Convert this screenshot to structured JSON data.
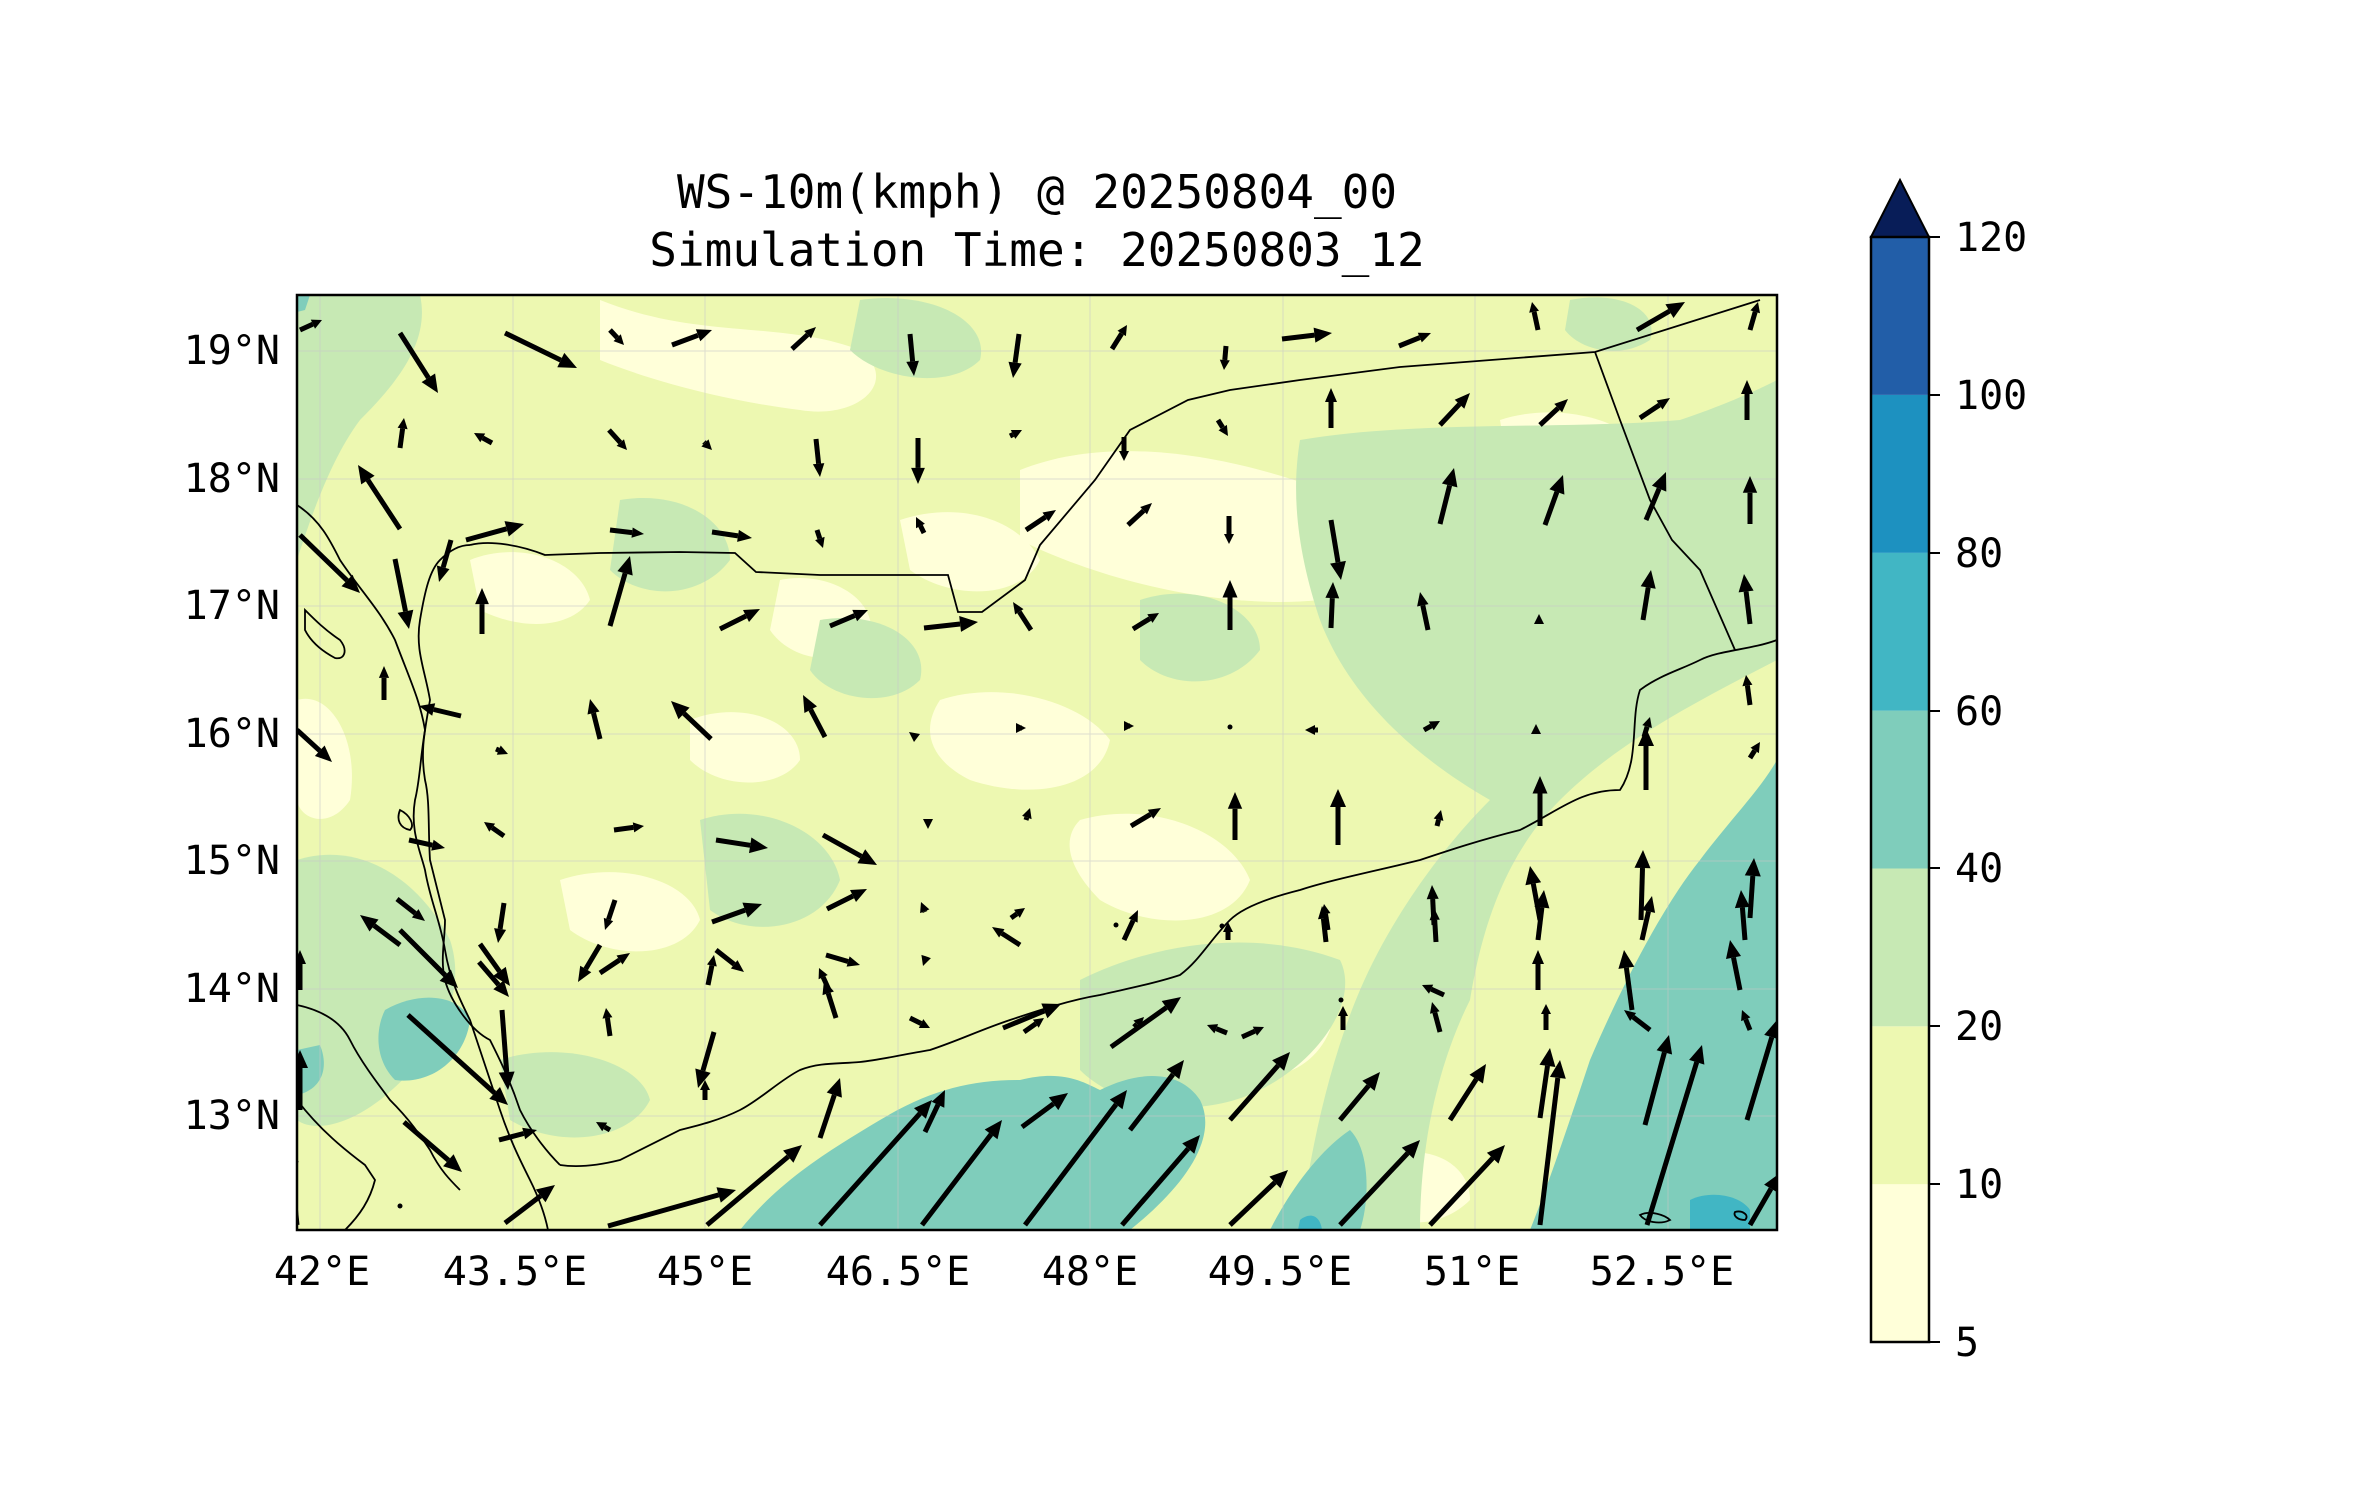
{
  "title": {
    "line1": "WS-10m(kmph) @ 20250804_00",
    "line2": "Simulation Time: 20250803_12"
  },
  "map": {
    "lon_range": [
      41.85,
      53.45
    ],
    "lat_range": [
      12.1,
      19.45
    ],
    "x_ticks": [
      "42°E",
      "43.5°E",
      "45°E",
      "46.5°E",
      "48°E",
      "49.5°E",
      "51°E",
      "52.5°E"
    ],
    "x_tick_values": [
      42,
      43.5,
      45,
      46.5,
      48,
      49.5,
      51,
      52.5
    ],
    "y_ticks": [
      "19°N",
      "18°N",
      "17°N",
      "16°N",
      "15°N",
      "14°N",
      "13°N"
    ],
    "y_tick_values": [
      19,
      18,
      17,
      16,
      15,
      14,
      13
    ],
    "grid": true,
    "field": "10 m wind speed (kmph), filled contours with wind vectors",
    "dominant_class": "10–20",
    "wind_vector_rows_lat": [
      19.0,
      18.2,
      17.4,
      16.6,
      15.8,
      15.0,
      14.2,
      13.4,
      12.6
    ]
  },
  "colorbar": {
    "levels": [
      "5",
      "10",
      "20",
      "40",
      "60",
      "80",
      "100",
      "120"
    ],
    "colors": [
      "#ffffd9",
      "#edf8b1",
      "#c7e9b4",
      "#7fcdbb",
      "#41b6c4",
      "#1d91c0",
      "#225ea8",
      "#253494"
    ],
    "extend": "max",
    "extend_color": "#081d58"
  }
}
